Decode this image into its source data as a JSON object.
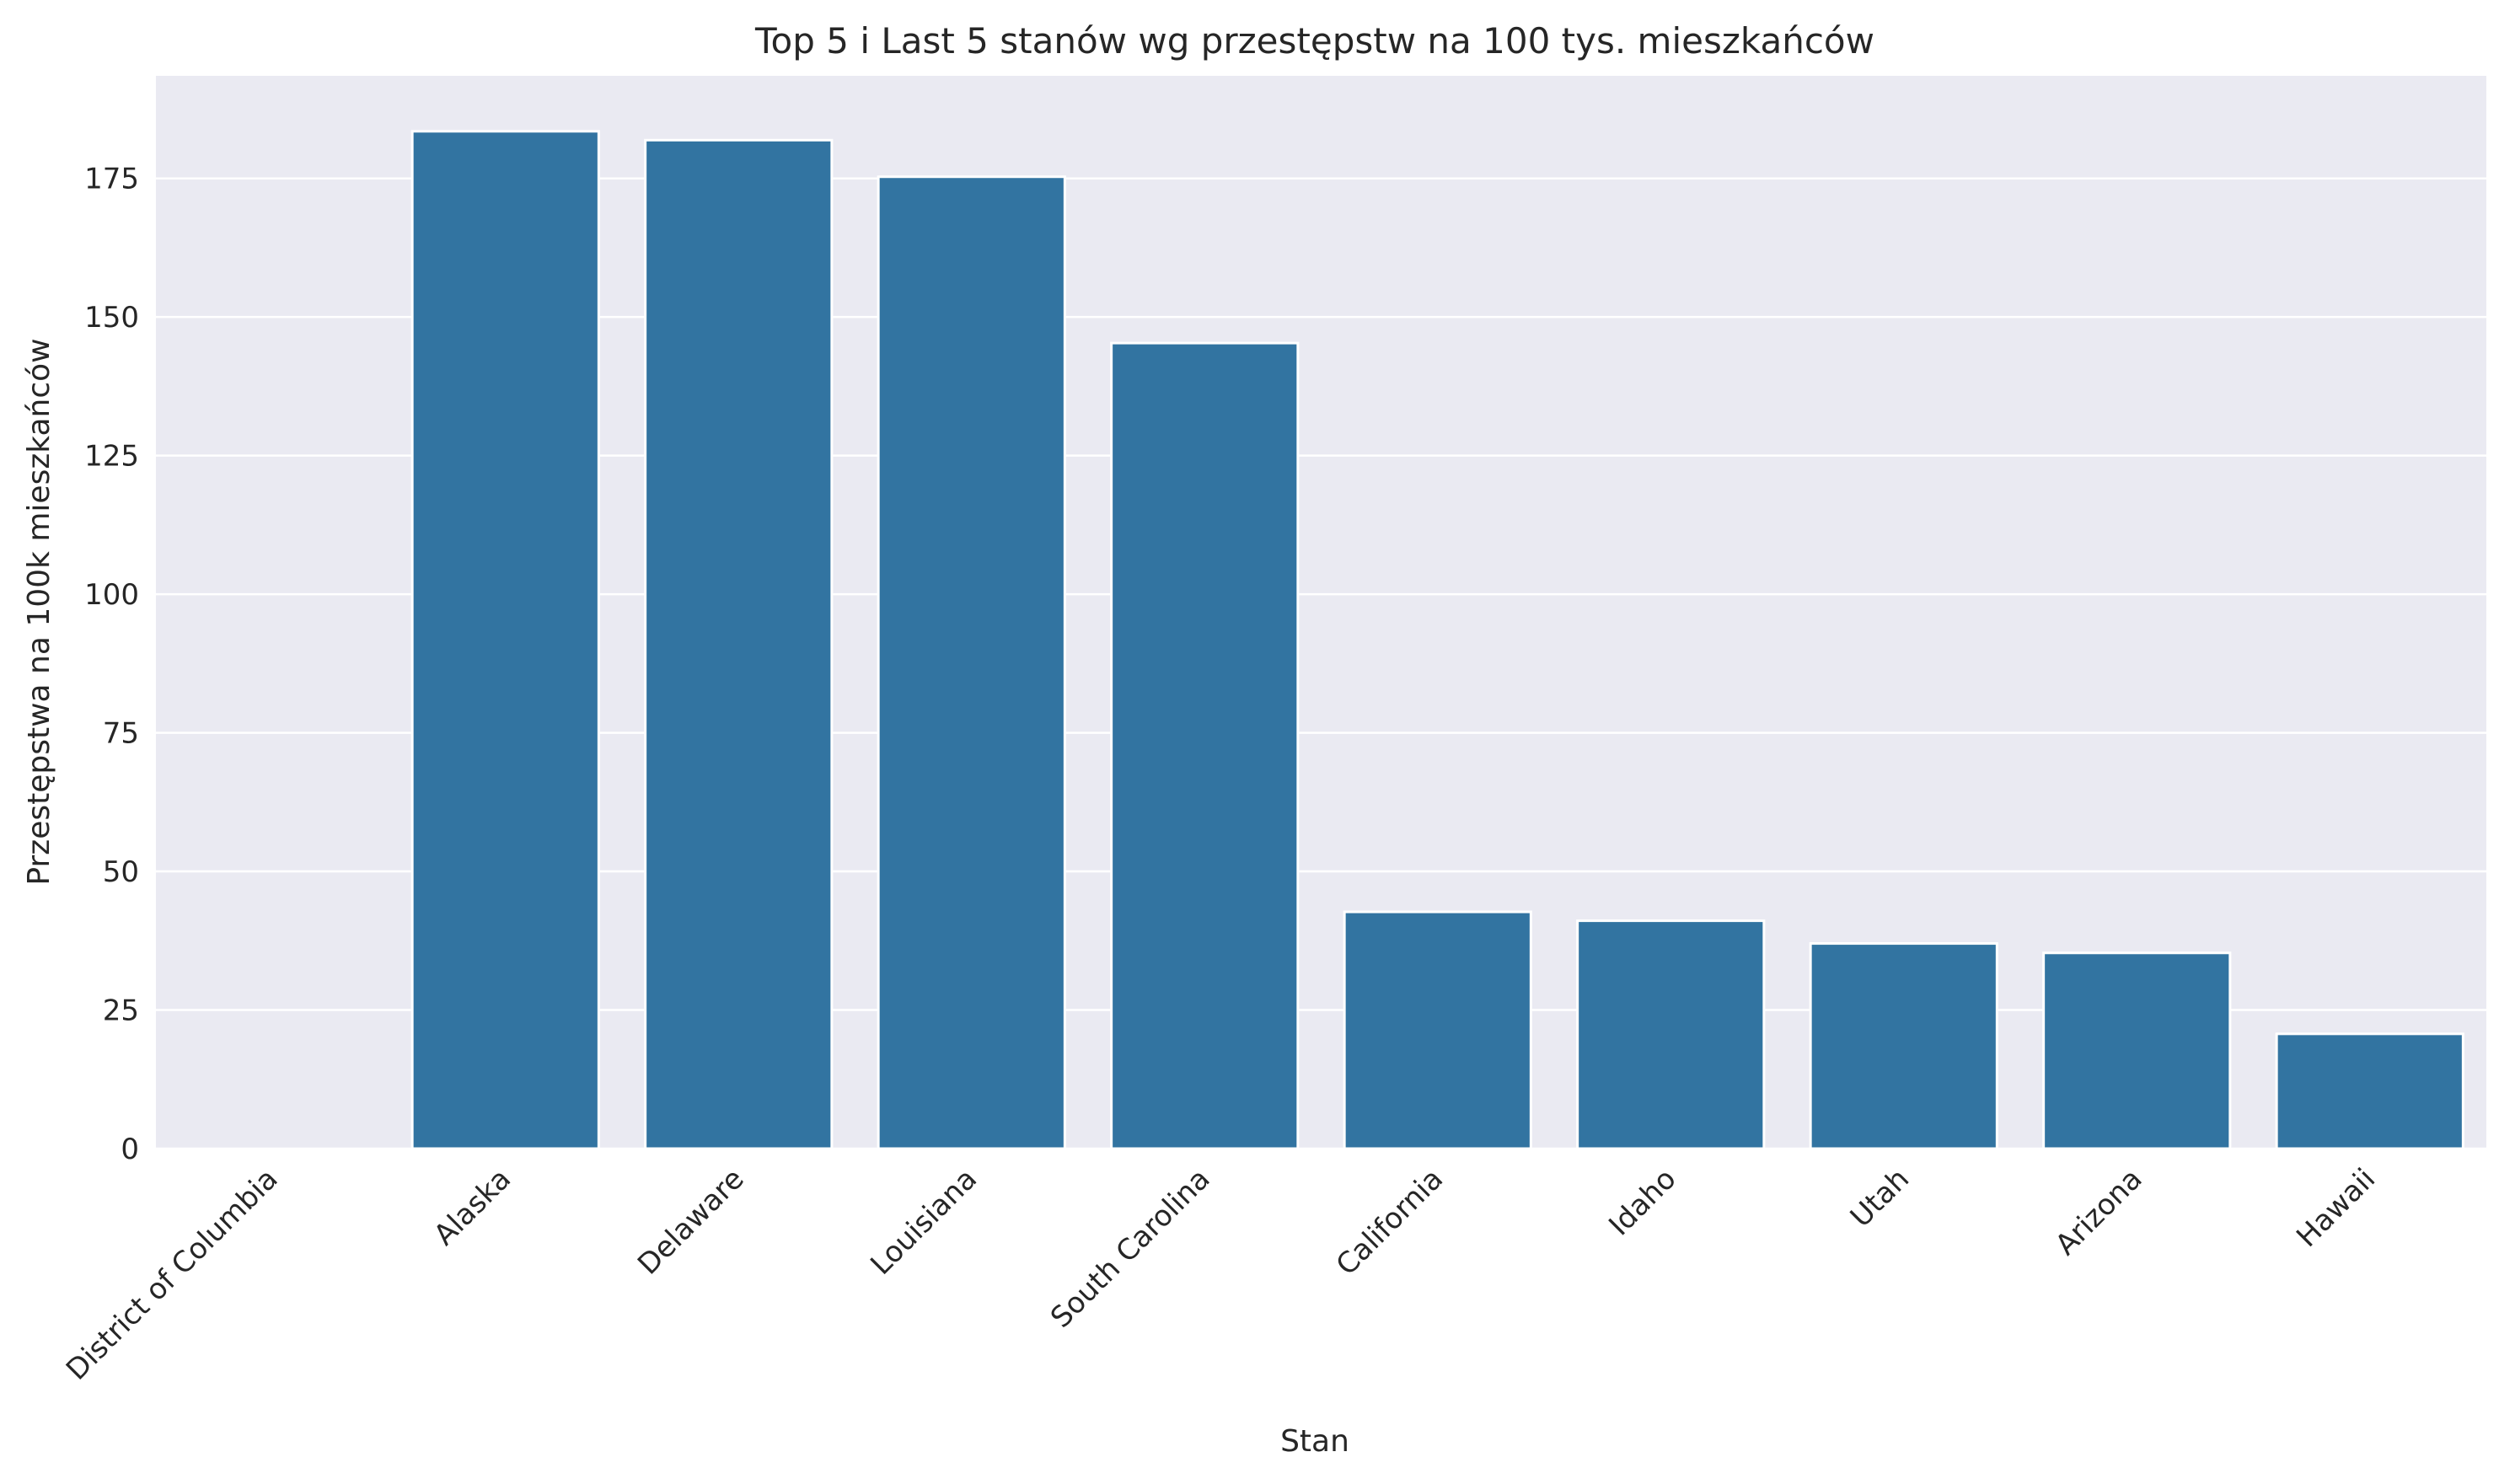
{
  "chart_data": {
    "type": "bar",
    "title": "Top 5 i Last 5 stanów wg przestępstw na 100 tys. mieszkańców",
    "xlabel": "Stan",
    "ylabel": "Przestępstwa na 100k mieszkańców",
    "categories": [
      "District of Columbia",
      "Alaska",
      "Delaware",
      "Louisiana",
      "South Carolina",
      "California",
      "Idaho",
      "Utah",
      "Arizona",
      "Hawaii"
    ],
    "values": [
      0,
      183.5,
      181.9,
      175.3,
      145.3,
      42.7,
      41.1,
      37.0,
      35.3,
      20.7
    ],
    "ylim": [
      0,
      193.5
    ],
    "yticks": [
      0,
      25,
      50,
      75,
      100,
      125,
      150,
      175
    ],
    "grid": true,
    "legend": "none",
    "colors": {
      "bar": "#3274a1",
      "plot_background": "#eaeaf2",
      "grid": "#ffffff",
      "text": "#262626"
    }
  }
}
